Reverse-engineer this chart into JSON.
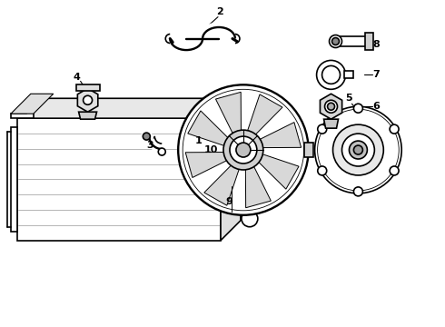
{
  "background_color": "#ffffff",
  "line_color": "#000000",
  "line_width": 1.2,
  "fig_width": 4.9,
  "fig_height": 3.6,
  "dpi": 100
}
